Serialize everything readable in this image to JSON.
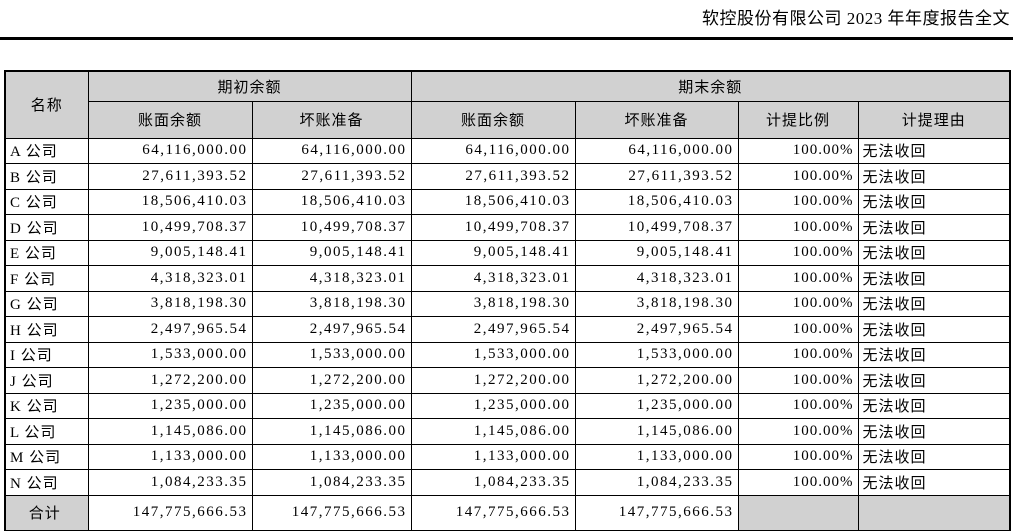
{
  "page": {
    "report_title": "软控股份有限公司 2023 年年度报告全文"
  },
  "colors": {
    "header_bg": "#d1d1d1",
    "border": "#000000",
    "text": "#000000",
    "page_bg": "#ffffff"
  },
  "table": {
    "header": {
      "name": "名称",
      "beginning_balance_group": "期初余额",
      "ending_balance_group": "期末余额",
      "sub_columns": [
        "账面余额",
        "坏账准备",
        "账面余额",
        "坏账准备",
        "计提比例",
        "计提理由"
      ]
    },
    "rows": [
      {
        "name": "A 公司",
        "begin_book": "64,116,000.00",
        "begin_bad": "64,116,000.00",
        "end_book": "64,116,000.00",
        "end_bad": "64,116,000.00",
        "ratio": "100.00%",
        "reason": "无法收回"
      },
      {
        "name": "B 公司",
        "begin_book": "27,611,393.52",
        "begin_bad": "27,611,393.52",
        "end_book": "27,611,393.52",
        "end_bad": "27,611,393.52",
        "ratio": "100.00%",
        "reason": "无法收回"
      },
      {
        "name": "C 公司",
        "begin_book": "18,506,410.03",
        "begin_bad": "18,506,410.03",
        "end_book": "18,506,410.03",
        "end_bad": "18,506,410.03",
        "ratio": "100.00%",
        "reason": "无法收回"
      },
      {
        "name": "D 公司",
        "begin_book": "10,499,708.37",
        "begin_bad": "10,499,708.37",
        "end_book": "10,499,708.37",
        "end_bad": "10,499,708.37",
        "ratio": "100.00%",
        "reason": "无法收回"
      },
      {
        "name": "E 公司",
        "begin_book": "9,005,148.41",
        "begin_bad": "9,005,148.41",
        "end_book": "9,005,148.41",
        "end_bad": "9,005,148.41",
        "ratio": "100.00%",
        "reason": "无法收回"
      },
      {
        "name": "F 公司",
        "begin_book": "4,318,323.01",
        "begin_bad": "4,318,323.01",
        "end_book": "4,318,323.01",
        "end_bad": "4,318,323.01",
        "ratio": "100.00%",
        "reason": "无法收回"
      },
      {
        "name": "G 公司",
        "begin_book": "3,818,198.30",
        "begin_bad": "3,818,198.30",
        "end_book": "3,818,198.30",
        "end_bad": "3,818,198.30",
        "ratio": "100.00%",
        "reason": "无法收回"
      },
      {
        "name": "H 公司",
        "begin_book": "2,497,965.54",
        "begin_bad": "2,497,965.54",
        "end_book": "2,497,965.54",
        "end_bad": "2,497,965.54",
        "ratio": "100.00%",
        "reason": "无法收回"
      },
      {
        "name": "I 公司",
        "begin_book": "1,533,000.00",
        "begin_bad": "1,533,000.00",
        "end_book": "1,533,000.00",
        "end_bad": "1,533,000.00",
        "ratio": "100.00%",
        "reason": "无法收回"
      },
      {
        "name": "J 公司",
        "begin_book": "1,272,200.00",
        "begin_bad": "1,272,200.00",
        "end_book": "1,272,200.00",
        "end_bad": "1,272,200.00",
        "ratio": "100.00%",
        "reason": "无法收回"
      },
      {
        "name": "K 公司",
        "begin_book": "1,235,000.00",
        "begin_bad": "1,235,000.00",
        "end_book": "1,235,000.00",
        "end_bad": "1,235,000.00",
        "ratio": "100.00%",
        "reason": "无法收回"
      },
      {
        "name": "L 公司",
        "begin_book": "1,145,086.00",
        "begin_bad": "1,145,086.00",
        "end_book": "1,145,086.00",
        "end_bad": "1,145,086.00",
        "ratio": "100.00%",
        "reason": "无法收回"
      },
      {
        "name": "M 公司",
        "begin_book": "1,133,000.00",
        "begin_bad": "1,133,000.00",
        "end_book": "1,133,000.00",
        "end_bad": "1,133,000.00",
        "ratio": "100.00%",
        "reason": "无法收回"
      },
      {
        "name": "N 公司",
        "begin_book": "1,084,233.35",
        "begin_bad": "1,084,233.35",
        "end_book": "1,084,233.35",
        "end_bad": "1,084,233.35",
        "ratio": "100.00%",
        "reason": "无法收回"
      }
    ],
    "total_row": {
      "name": "合计",
      "begin_book": "147,775,666.53",
      "begin_bad": "147,775,666.53",
      "end_book": "147,775,666.53",
      "end_bad": "147,775,666.53",
      "ratio": "",
      "reason": ""
    }
  }
}
